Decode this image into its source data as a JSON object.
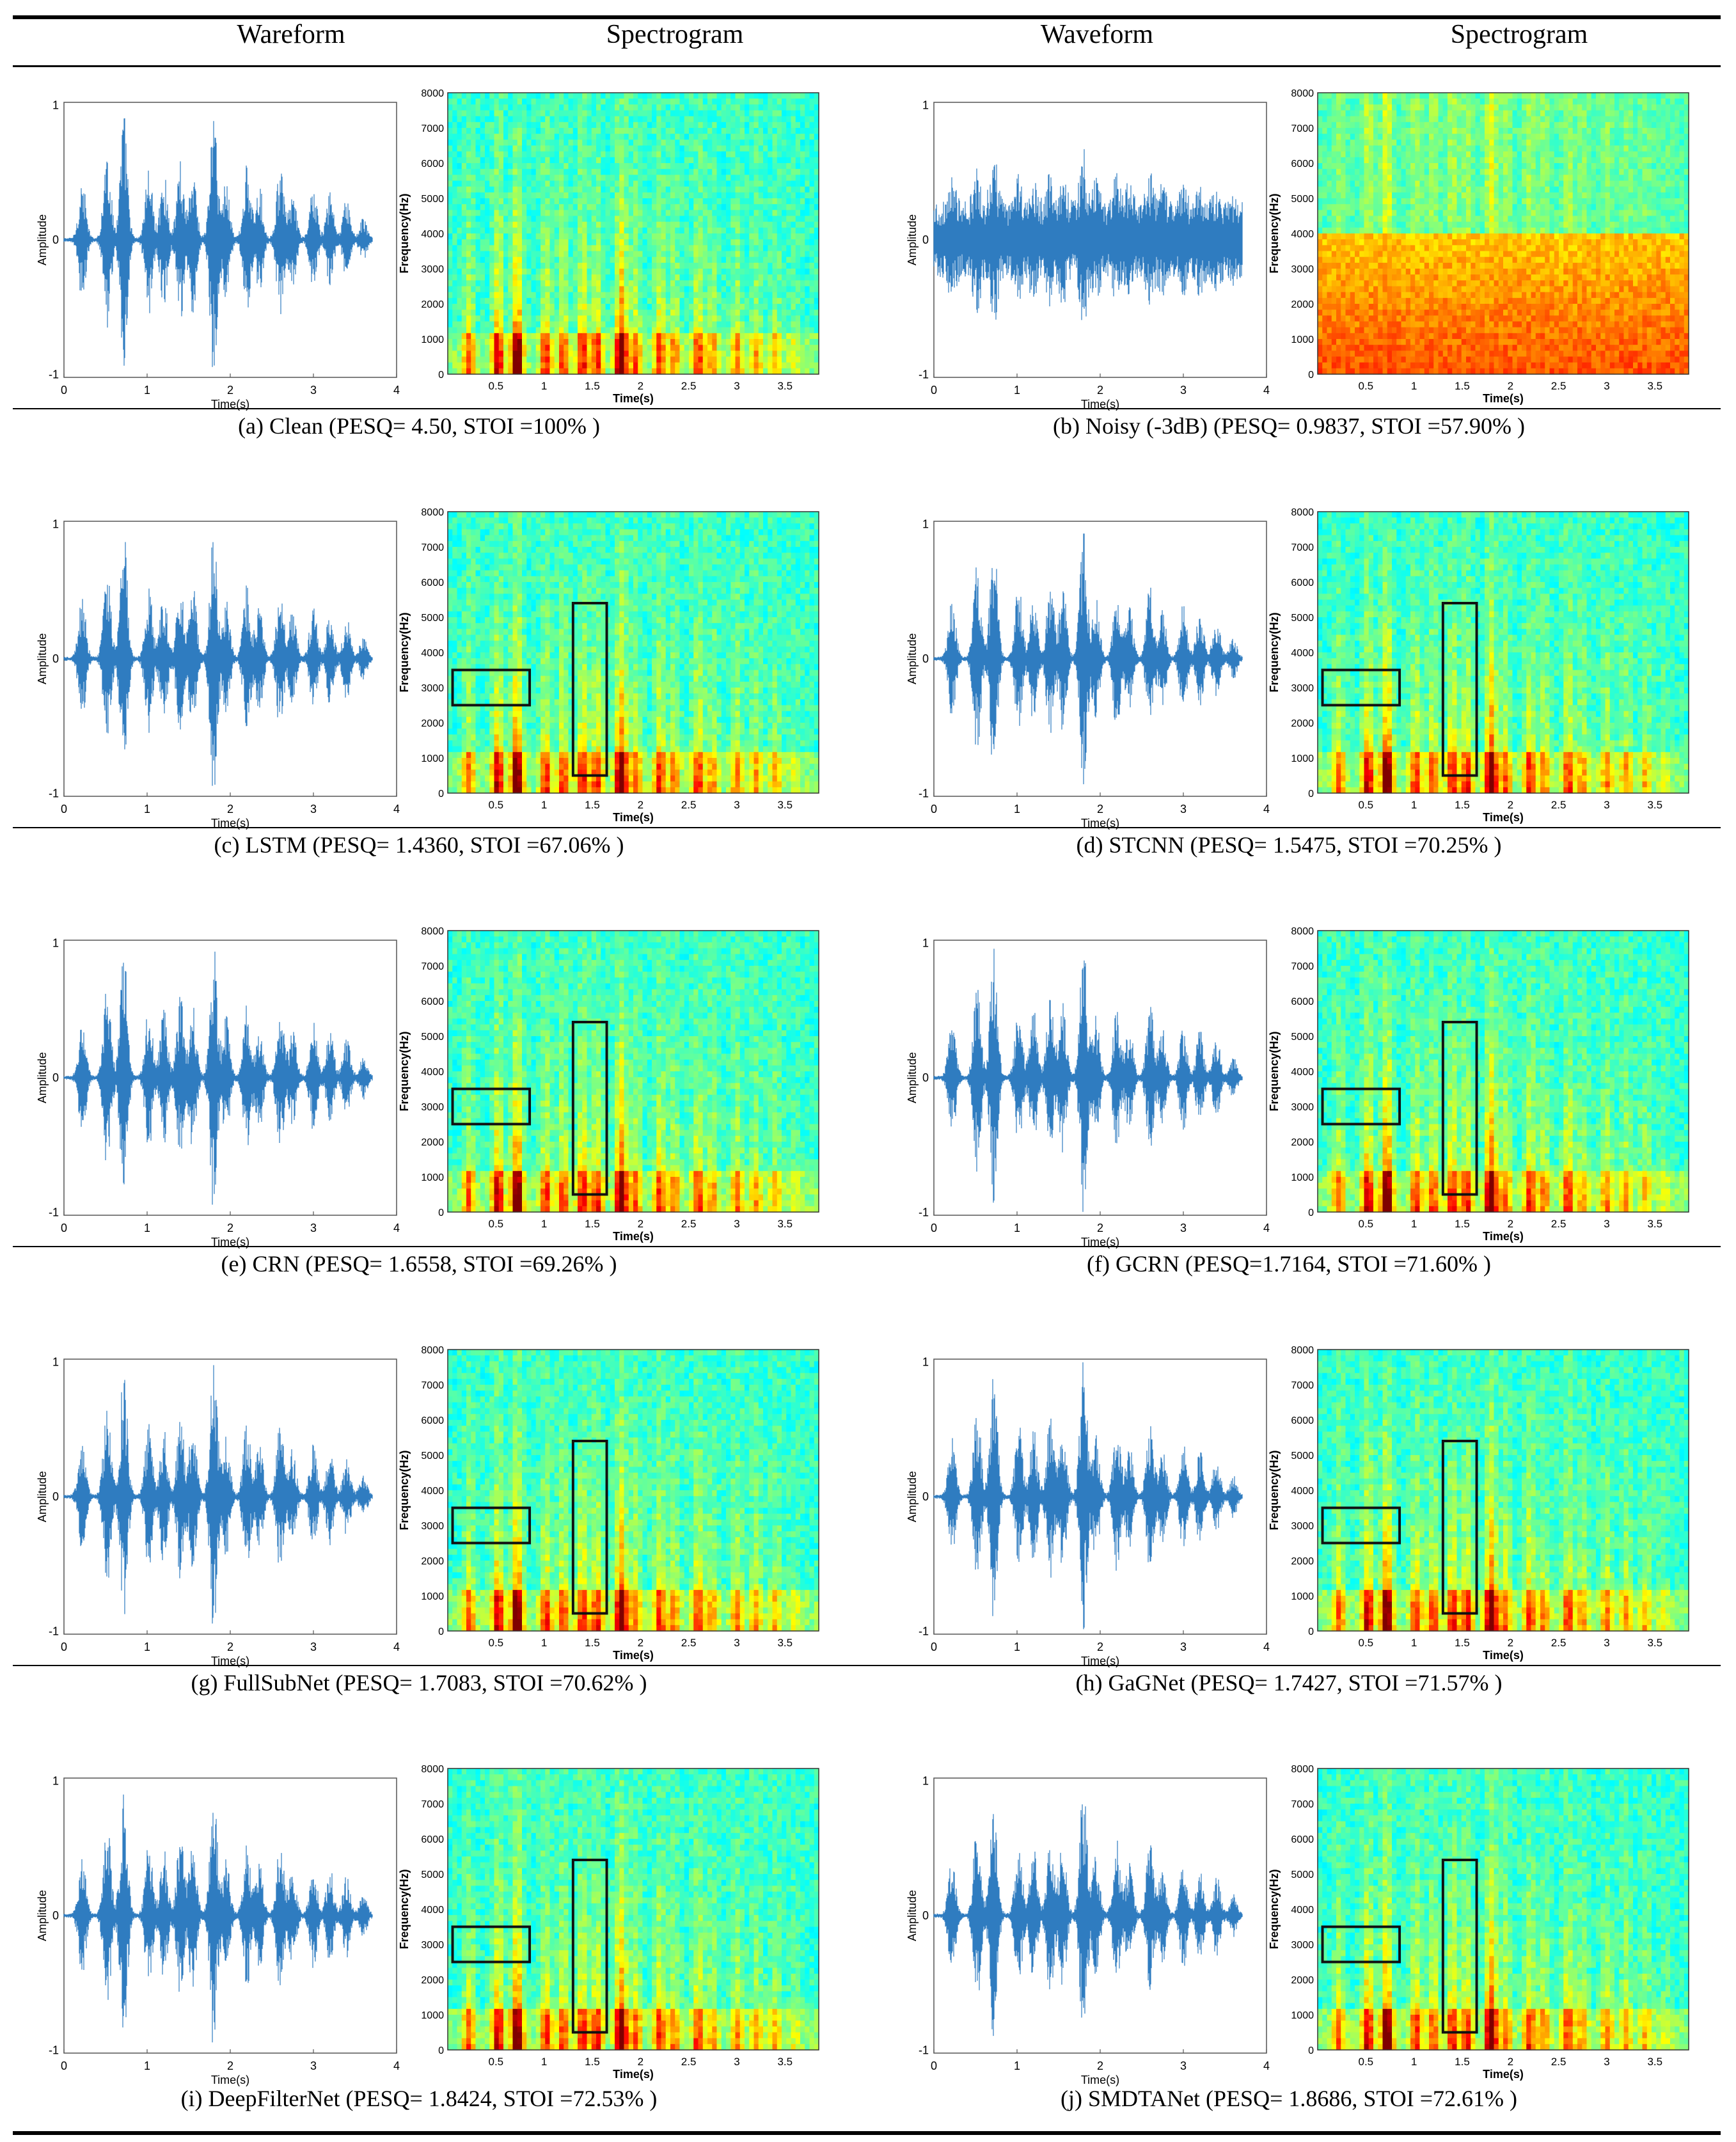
{
  "header": {
    "col1": "Wareform",
    "col2": "Spectrogram",
    "col3": "Waveform",
    "col4": "Spectrogram"
  },
  "axes": {
    "wave_xlabel": "Time(s)",
    "wave_ylabel": "Amplitude",
    "spec_xlabel": "Time(s)",
    "spec_ylabel": "Frequency(Hz)",
    "wave_xticks": [
      "0",
      "1",
      "2",
      "3",
      "4"
    ],
    "wave_yticks": [
      "1",
      "0",
      "-1"
    ],
    "spec_xticks": [
      "0.5",
      "1",
      "1.5",
      "2",
      "2.5",
      "3",
      "3.5"
    ],
    "spec_yticks": [
      "8000",
      "7000",
      "6000",
      "5000",
      "4000",
      "3000",
      "2000",
      "1000",
      "0"
    ]
  },
  "colors": {
    "wave": "#2f7cc0",
    "box": "#111111"
  },
  "panels": [
    {
      "id": "a",
      "caption": "(a) Clean (PESQ= 4.50, STOI =100% )",
      "method": "Clean",
      "pesq": 4.5,
      "stoi": "100%",
      "noisy": false,
      "highlight": false
    },
    {
      "id": "b",
      "caption": "(b) Noisy (-3dB) (PESQ= 0.9837, STOI =57.90% )",
      "method": "Noisy (-3dB)",
      "pesq": 0.9837,
      "stoi": "57.90%",
      "noisy": true,
      "highlight": false
    },
    {
      "id": "c",
      "caption": "(c) LSTM (PESQ= 1.4360, STOI =67.06% )",
      "method": "LSTM",
      "pesq": 1.436,
      "stoi": "67.06%",
      "noisy": false,
      "highlight": true
    },
    {
      "id": "d",
      "caption": "(d) STCNN (PESQ= 1.5475, STOI =70.25% )",
      "method": "STCNN",
      "pesq": 1.5475,
      "stoi": "70.25%",
      "noisy": false,
      "highlight": true
    },
    {
      "id": "e",
      "caption": "(e) CRN (PESQ= 1.6558, STOI =69.26% )",
      "method": "CRN",
      "pesq": 1.6558,
      "stoi": "69.26%",
      "noisy": false,
      "highlight": true
    },
    {
      "id": "f",
      "caption": "(f) GCRN (PESQ=1.7164, STOI =71.60% )",
      "method": "GCRN",
      "pesq": 1.7164,
      "stoi": "71.60%",
      "noisy": false,
      "highlight": true
    },
    {
      "id": "g",
      "caption": "(g) FullSubNet (PESQ= 1.7083, STOI =70.62% )",
      "method": "FullSubNet",
      "pesq": 1.7083,
      "stoi": "70.62%",
      "noisy": false,
      "highlight": true
    },
    {
      "id": "h",
      "caption": "(h) GaGNet (PESQ= 1.7427, STOI =71.57% )",
      "method": "GaGNet",
      "pesq": 1.7427,
      "stoi": "71.57%",
      "noisy": false,
      "highlight": true
    },
    {
      "id": "i",
      "caption": "(i) DeepFilterNet (PESQ= 1.8424, STOI =72.53% )",
      "method": "DeepFilterNet",
      "pesq": 1.8424,
      "stoi": "72.53%",
      "noisy": false,
      "highlight": true
    },
    {
      "id": "j",
      "caption": "(j) SMDTANet (PESQ= 1.8686, STOI =72.61% )",
      "method": "SMDTANet",
      "pesq": 1.8686,
      "stoi": "72.61%",
      "noisy": false,
      "highlight": true
    }
  ]
}
